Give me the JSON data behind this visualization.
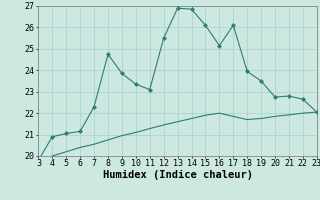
{
  "x": [
    3,
    4,
    5,
    6,
    7,
    8,
    9,
    10,
    11,
    12,
    13,
    14,
    15,
    16,
    17,
    18,
    19,
    20,
    21,
    22,
    23
  ],
  "y_main": [
    19.8,
    20.9,
    21.05,
    21.15,
    22.3,
    24.75,
    23.85,
    23.35,
    23.1,
    25.5,
    26.9,
    26.85,
    26.1,
    25.15,
    26.1,
    23.95,
    23.5,
    22.75,
    22.8,
    22.65,
    22.05
  ],
  "y_ref": [
    19.75,
    20.0,
    20.2,
    20.4,
    20.55,
    20.75,
    20.95,
    21.1,
    21.28,
    21.45,
    21.6,
    21.75,
    21.9,
    22.0,
    21.85,
    21.7,
    21.75,
    21.85,
    21.92,
    22.0,
    22.05
  ],
  "xlim": [
    3,
    23
  ],
  "ylim": [
    20,
    27
  ],
  "xlabel": "Humidex (Indice chaleur)",
  "xticks": [
    3,
    4,
    5,
    6,
    7,
    8,
    9,
    10,
    11,
    12,
    13,
    14,
    15,
    16,
    17,
    18,
    19,
    20,
    21,
    22,
    23
  ],
  "yticks": [
    20,
    21,
    22,
    23,
    24,
    25,
    26,
    27
  ],
  "line_color": "#2e7d6e",
  "bg_color": "#cce8e0",
  "grid_color": "#a8cfca",
  "xlabel_fontsize": 7.5,
  "tick_fontsize": 6,
  "marker": "D",
  "marker_size": 2.0,
  "linewidth": 0.8
}
